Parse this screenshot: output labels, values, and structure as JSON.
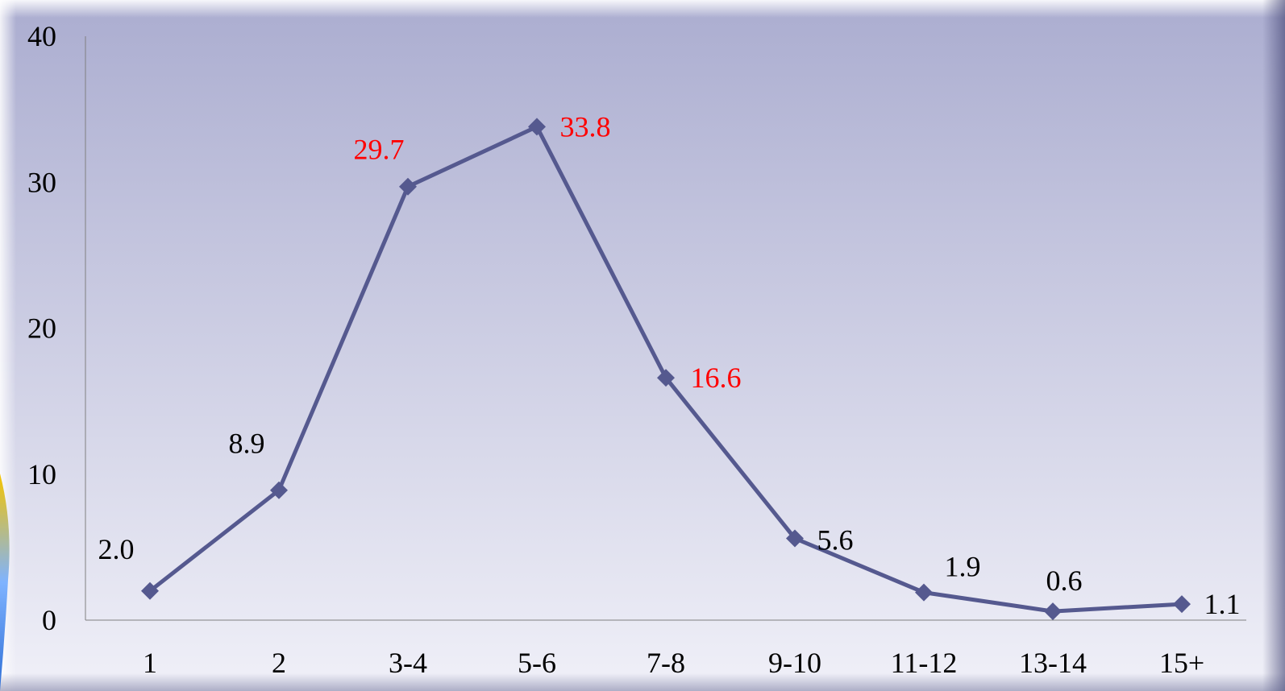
{
  "chart_data": {
    "type": "line",
    "categories": [
      "1",
      "2",
      "3-4",
      "5-6",
      "7-8",
      "9-10",
      "11-12",
      "13-14",
      "15+"
    ],
    "series": [
      {
        "values": [
          2.0,
          8.9,
          29.7,
          33.8,
          16.6,
          5.6,
          1.9,
          0.6,
          1.1
        ]
      }
    ],
    "data_labels": [
      "2.0",
      "8.9",
      "29.7",
      "33.8",
      "16.6",
      "5.6",
      "1.9",
      "0.6",
      "1.1"
    ],
    "highlighted_labels": [
      2,
      3,
      4
    ],
    "y_ticks": [
      "0",
      "10",
      "20",
      "30",
      "40"
    ],
    "ylim": [
      0,
      40
    ],
    "grid": false,
    "legend": "none",
    "marker": "diamond"
  },
  "colors": {
    "line": "#55598f",
    "label": "#000000",
    "label_highlight": "#ff0000",
    "bg_top": "#abadd0",
    "bg_bottom": "#f0f0f8",
    "axis": "#808080",
    "accent_left": "#f5c400"
  }
}
